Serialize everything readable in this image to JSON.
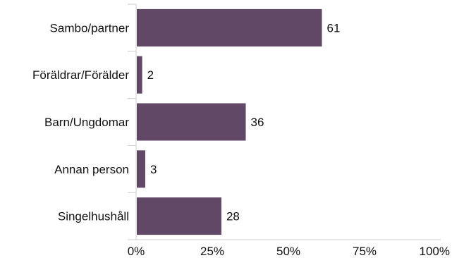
{
  "chart_data": {
    "type": "bar",
    "orientation": "horizontal",
    "categories": [
      "Sambo/partner",
      "Föräldrar/Förälder",
      "Barn/Ungdomar",
      "Annan person",
      "Singelhushåll"
    ],
    "values": [
      61,
      2,
      36,
      3,
      28
    ],
    "value_labels": [
      "61",
      "2",
      "36",
      "3",
      "28"
    ],
    "x_ticks": [
      "0%",
      "25%",
      "50%",
      "75%",
      "100%"
    ],
    "xlim": [
      0,
      100
    ],
    "grid": false,
    "legend": "none",
    "bar_color": "#614866",
    "axis_color": "#cccccc"
  }
}
